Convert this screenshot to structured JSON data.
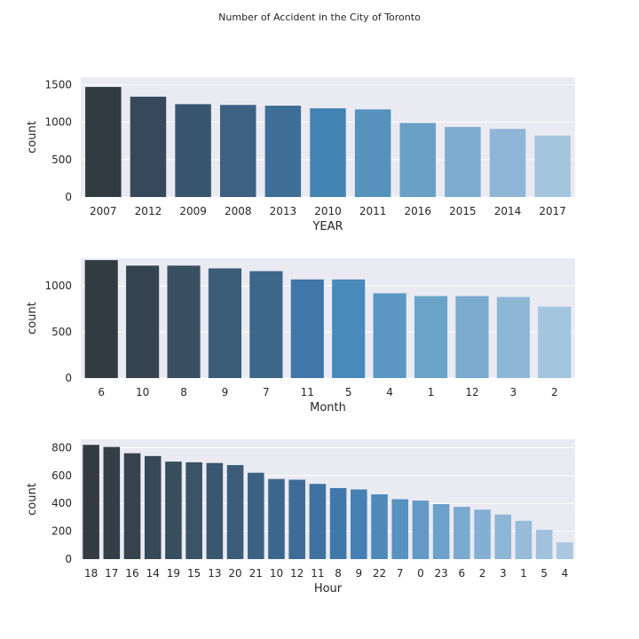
{
  "figure": {
    "title": "Number of Accident in the City of Toronto"
  },
  "chart_data": [
    {
      "type": "bar",
      "xlabel": "YEAR",
      "ylabel": "count",
      "ylim": [
        0,
        1600
      ],
      "yticks": [
        0,
        500,
        1000,
        1500
      ],
      "grid": true,
      "categories": [
        "2007",
        "2012",
        "2009",
        "2008",
        "2013",
        "2010",
        "2011",
        "2016",
        "2015",
        "2014",
        "2017"
      ],
      "values": [
        1470,
        1340,
        1240,
        1230,
        1220,
        1185,
        1170,
        990,
        935,
        910,
        820
      ],
      "colors": [
        "#323b41",
        "#37485a",
        "#395670",
        "#3c6182",
        "#3f6e96",
        "#4484b5",
        "#5593bc",
        "#6a9fc6",
        "#7eabd0",
        "#8fb6d6",
        "#a3c5de"
      ]
    },
    {
      "type": "bar",
      "xlabel": "Month",
      "ylabel": "count",
      "ylim": [
        0,
        1300
      ],
      "yticks": [
        0,
        500,
        1000
      ],
      "grid": true,
      "categories": [
        "6",
        "10",
        "8",
        "9",
        "7",
        "11",
        "5",
        "4",
        "1",
        "12",
        "3",
        "2"
      ],
      "values": [
        1280,
        1220,
        1220,
        1190,
        1160,
        1070,
        1070,
        920,
        890,
        890,
        880,
        775
      ],
      "colors": [
        "#323b41",
        "#36444f",
        "#38505f",
        "#3b5c76",
        "#3d6788",
        "#3f77a8",
        "#4a8abb",
        "#5a98c2",
        "#6aa3c8",
        "#7aabce",
        "#8eb7d6",
        "#a3c5de"
      ]
    },
    {
      "type": "bar",
      "xlabel": "Hour",
      "ylabel": "count",
      "ylim": [
        0,
        860
      ],
      "yticks": [
        0,
        200,
        400,
        600,
        800
      ],
      "grid": true,
      "categories": [
        "18",
        "17",
        "16",
        "14",
        "19",
        "15",
        "13",
        "20",
        "21",
        "10",
        "12",
        "11",
        "8",
        "9",
        "22",
        "7",
        "0",
        "23",
        "6",
        "2",
        "3",
        "1",
        "5",
        "4"
      ],
      "values": [
        820,
        805,
        760,
        740,
        700,
        695,
        690,
        675,
        620,
        575,
        570,
        540,
        510,
        500,
        465,
        430,
        420,
        395,
        375,
        355,
        320,
        275,
        210,
        120
      ],
      "colors": [
        "#323b41",
        "#343f48",
        "#36434f",
        "#374856",
        "#384d5e",
        "#395266",
        "#3a5770",
        "#3b5c79",
        "#3c6183",
        "#3d668c",
        "#3e6c96",
        "#3f72a0",
        "#4078aa",
        "#467fb3",
        "#4e89ba",
        "#5892bf",
        "#6399c4",
        "#6ea1c9",
        "#79a9ce",
        "#83afd2",
        "#8db5d5",
        "#97bbd9",
        "#a0c2dc",
        "#a9c8e0"
      ]
    }
  ]
}
